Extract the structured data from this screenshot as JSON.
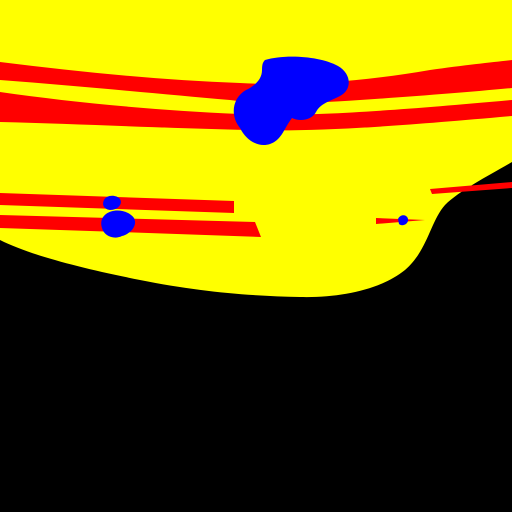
{
  "image": {
    "kind": "segmentation-mask",
    "background_color": "#000000"
  },
  "classes": [
    {
      "id": "region-yellow",
      "color": "#FFFF00"
    },
    {
      "id": "region-red",
      "color": "#FF0000"
    },
    {
      "id": "region-blue",
      "color": "#0000FF"
    }
  ]
}
